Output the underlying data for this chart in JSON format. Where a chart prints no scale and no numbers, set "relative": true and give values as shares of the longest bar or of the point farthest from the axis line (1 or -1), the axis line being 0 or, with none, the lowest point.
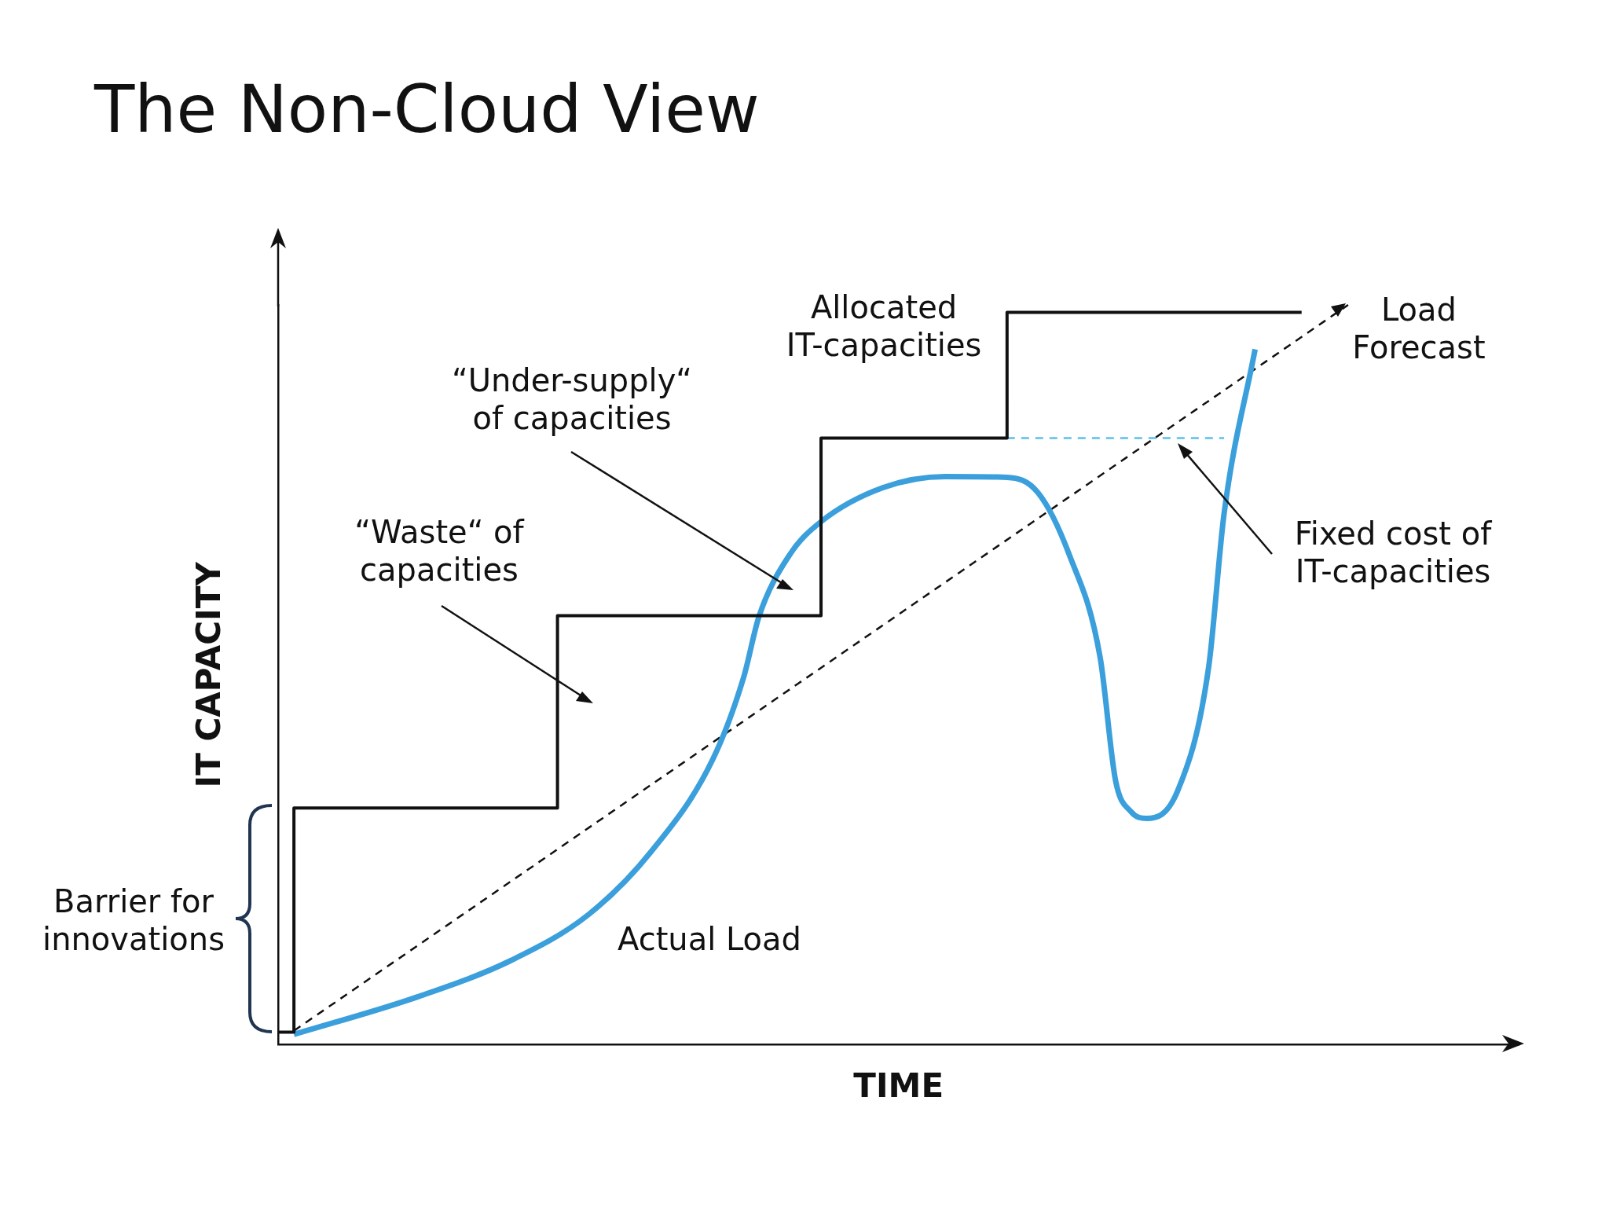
{
  "chart_data": {
    "type": "line",
    "relative": true,
    "title": "The Non-Cloud View",
    "xlabel": "TIME",
    "ylabel": "IT CAPACITY",
    "grid": false,
    "legend": false,
    "marker": "none",
    "categories": [
      null,
      null,
      null,
      null,
      null,
      null,
      null,
      null,
      null,
      null,
      null,
      null,
      null,
      null,
      null,
      null,
      null,
      null,
      null,
      null,
      null,
      null,
      null,
      null,
      null,
      null,
      null,
      null,
      null,
      null,
      null,
      null,
      null,
      null,
      null,
      null,
      null,
      null,
      null,
      null,
      null,
      null,
      null,
      null,
      null,
      null,
      null,
      null,
      null,
      null,
      null,
      null,
      null,
      null,
      null,
      null,
      null,
      null,
      null,
      null,
      null,
      null,
      null,
      null,
      null,
      null,
      null,
      null,
      null,
      null,
      null,
      null,
      null,
      null,
      null,
      null,
      null,
      null,
      null,
      null,
      null
    ],
    "series": [
      {
        "type": "step",
        "color": "#111111",
        "values": [
          0.017,
          0.32,
          null,
          null,
          null,
          null,
          null,
          null,
          null,
          null,
          null,
          null,
          null,
          null,
          null,
          null,
          null,
          null,
          0.58,
          null,
          null,
          null,
          null,
          null,
          null,
          null,
          null,
          null,
          null,
          null,
          null,
          null,
          null,
          null,
          null,
          0.82,
          null,
          null,
          null,
          null,
          null,
          null,
          null,
          null,
          null,
          null,
          null,
          0.99,
          null,
          null,
          null,
          null,
          null,
          null,
          null,
          null,
          null,
          null,
          null,
          null,
          null,
          null,
          null,
          null,
          null,
          null,
          0.99,
          null,
          null,
          null,
          null,
          null,
          null,
          null,
          null,
          null,
          null,
          null,
          null,
          null,
          null
        ]
      },
      {
        "type": "line",
        "color": "#3b9fdc",
        "values": [
          null,
          0.014,
          null,
          null,
          null,
          null,
          null,
          null,
          null,
          0.065,
          null,
          null,
          null,
          null,
          null,
          0.114,
          null,
          null,
          null,
          null,
          0.176,
          null,
          null,
          null,
          0.26,
          null,
          null,
          null,
          0.385,
          null,
          0.496,
          0.579,
          null,
          0.663,
          null,
          0.707,
          null,
          null,
          null,
          0.753,
          null,
          null,
          null,
          0.768,
          null,
          null,
          null,
          0.767,
          null,
          0.746,
          null,
          0.663,
          null,
          0.524,
          0.357,
          0.315,
          0.306,
          null,
          0.343,
          null,
          0.51,
          0.718,
          null,
          0.94,
          null,
          null,
          null,
          null,
          null,
          null,
          null,
          null,
          null,
          null,
          null,
          null,
          null,
          null,
          null,
          null,
          null
        ]
      },
      {
        "type": "line",
        "color": "#111111",
        "line_style": "dashed",
        "values": [
          null,
          0.019,
          null,
          null,
          null,
          null,
          null,
          null,
          null,
          null,
          null,
          null,
          null,
          null,
          null,
          null,
          null,
          null,
          null,
          null,
          null,
          null,
          null,
          null,
          null,
          null,
          null,
          null,
          null,
          null,
          null,
          null,
          null,
          null,
          null,
          null,
          null,
          null,
          null,
          null,
          null,
          null,
          null,
          null,
          null,
          null,
          null,
          null,
          null,
          null,
          null,
          null,
          null,
          null,
          null,
          null,
          null,
          null,
          null,
          null,
          null,
          null,
          null,
          null,
          null,
          null,
          null,
          null,
          null,
          1.0,
          null,
          null,
          null,
          null,
          null,
          null,
          null,
          null,
          null,
          null,
          null
        ]
      },
      {
        "type": "line",
        "color": "#5bc0eb",
        "line_style": "dashed",
        "values": [
          null,
          null,
          null,
          null,
          null,
          null,
          null,
          null,
          null,
          null,
          null,
          null,
          null,
          null,
          null,
          null,
          null,
          null,
          null,
          null,
          null,
          null,
          null,
          null,
          null,
          null,
          null,
          null,
          null,
          null,
          null,
          null,
          null,
          null,
          null,
          null,
          null,
          null,
          null,
          null,
          null,
          null,
          null,
          null,
          null,
          null,
          null,
          0.82,
          null,
          null,
          null,
          null,
          null,
          null,
          null,
          null,
          null,
          null,
          null,
          null,
          null,
          0.82,
          null,
          null,
          null,
          null,
          null,
          null,
          null,
          null,
          null,
          null,
          null,
          null,
          null,
          null,
          null,
          null,
          null,
          null,
          null
        ]
      }
    ],
    "annotations": [
      "Allocated\nIT-capacities",
      "Load\nForecast",
      "“Under-supply“\nof capacities",
      "“Waste“ of\ncapacities",
      "Fixed cost of\nIT-capacities",
      "Actual Load",
      "Barrier for\ninnovations"
    ]
  }
}
